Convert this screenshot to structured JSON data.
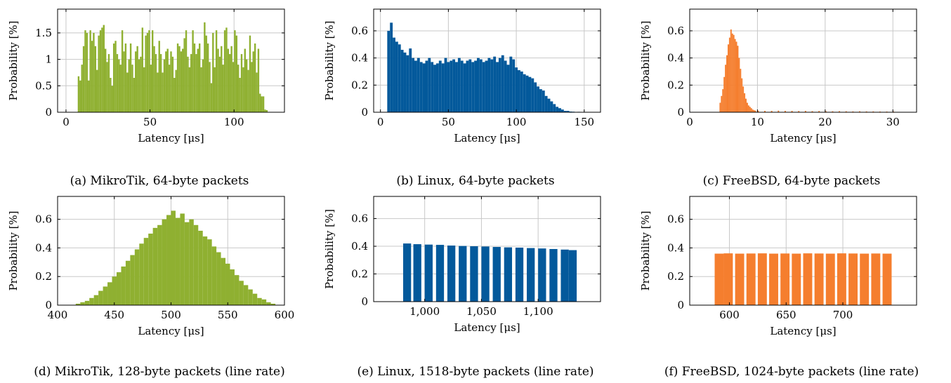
{
  "chart_data": [
    {
      "type": "bar",
      "caption": "(a) MikroTik, 64-byte packets",
      "xlabel": "Latency [μs]",
      "ylabel": "Probability [%]",
      "xlim": [
        -5,
        130
      ],
      "ylim": [
        0,
        1.95
      ],
      "xticks": [
        "0",
        "50",
        "100"
      ],
      "xtick_values": [
        0,
        50,
        100
      ],
      "yticks": [
        "0",
        "0.5",
        "1",
        "1.5"
      ],
      "ytick_values": [
        0,
        0.5,
        1,
        1.5
      ],
      "grid": true,
      "color": "#8fb031",
      "x": [
        7,
        8,
        9,
        10,
        11,
        12,
        13,
        14,
        15,
        16,
        17,
        18,
        19,
        20,
        21,
        22,
        23,
        24,
        25,
        26,
        27,
        28,
        29,
        30,
        31,
        32,
        33,
        34,
        35,
        36,
        37,
        38,
        39,
        40,
        41,
        42,
        43,
        44,
        45,
        46,
        47,
        48,
        49,
        50,
        51,
        52,
        53,
        54,
        55,
        56,
        57,
        58,
        59,
        60,
        61,
        62,
        63,
        64,
        65,
        66,
        67,
        68,
        69,
        70,
        71,
        72,
        73,
        74,
        75,
        76,
        77,
        78,
        79,
        80,
        81,
        82,
        83,
        84,
        85,
        86,
        87,
        88,
        89,
        90,
        91,
        92,
        93,
        94,
        95,
        96,
        97,
        98,
        99,
        100,
        101,
        102,
        103,
        104,
        105,
        106,
        107,
        108,
        109,
        110,
        111,
        112,
        113,
        114,
        115,
        116,
        117,
        118,
        119
      ],
      "values": [
        0.68,
        0.6,
        0.9,
        1.25,
        1.55,
        1.5,
        0.6,
        1.55,
        1.35,
        1.5,
        1.25,
        0.8,
        1.45,
        1.55,
        1.6,
        1.65,
        1.2,
        0.95,
        1.1,
        0.65,
        0.5,
        1.3,
        1.35,
        1.1,
        1.0,
        0.9,
        1.55,
        1.15,
        1.3,
        0.75,
        1.0,
        1.3,
        0.9,
        0.65,
        1.15,
        1.25,
        1.0,
        1.05,
        1.6,
        0.85,
        1.45,
        1.5,
        1.55,
        0.9,
        1.55,
        1.25,
        1.1,
        0.75,
        1.35,
        1.1,
        0.75,
        1.0,
        1.15,
        1.2,
        0.9,
        1.15,
        1.05,
        0.65,
        0.8,
        1.3,
        1.25,
        1.15,
        1.2,
        1.4,
        1.55,
        1.05,
        0.85,
        1.1,
        1.55,
        1.3,
        1.1,
        1.2,
        1.3,
        0.85,
        1.0,
        1.7,
        1.45,
        1.3,
        0.95,
        0.55,
        1.5,
        0.85,
        1.55,
        1.2,
        1.05,
        1.25,
        0.9,
        1.55,
        1.6,
        1.2,
        1.1,
        1.25,
        0.95,
        1.55,
        1.45,
        0.9,
        0.65,
        1.1,
        0.85,
        1.2,
        1.0,
        0.8,
        1.45,
        0.95,
        1.15,
        1.3,
        0.75,
        1.2,
        0.35,
        0.3,
        0.3,
        0.05,
        0.04
      ]
    },
    {
      "type": "bar",
      "caption": "(b) Linux, 64-byte packets",
      "xlabel": "Latency [μs]",
      "ylabel": "Probability [%]",
      "xlim": [
        -5,
        162
      ],
      "ylim": [
        0,
        0.76
      ],
      "xticks": [
        "0",
        "50",
        "100",
        "150"
      ],
      "xtick_values": [
        0,
        50,
        100,
        150
      ],
      "yticks": [
        "0",
        "0.2",
        "0.4",
        "0.6"
      ],
      "ytick_values": [
        0,
        0.2,
        0.4,
        0.6
      ],
      "grid": true,
      "color": "#03599b",
      "x": [
        5,
        7,
        9,
        11,
        13,
        15,
        17,
        19,
        21,
        23,
        25,
        27,
        29,
        31,
        33,
        35,
        37,
        39,
        41,
        43,
        45,
        47,
        49,
        51,
        53,
        55,
        57,
        59,
        61,
        63,
        65,
        67,
        69,
        71,
        73,
        75,
        77,
        79,
        81,
        83,
        85,
        87,
        89,
        91,
        93,
        95,
        97,
        99,
        101,
        103,
        105,
        107,
        109,
        111,
        113,
        115,
        117,
        119,
        121,
        123,
        125,
        127,
        129,
        131,
        133,
        135,
        137,
        139,
        141,
        145,
        150,
        155
      ],
      "values": [
        0.6,
        0.66,
        0.55,
        0.52,
        0.5,
        0.46,
        0.44,
        0.42,
        0.47,
        0.4,
        0.38,
        0.4,
        0.37,
        0.36,
        0.38,
        0.4,
        0.37,
        0.35,
        0.36,
        0.38,
        0.36,
        0.4,
        0.37,
        0.38,
        0.39,
        0.37,
        0.4,
        0.38,
        0.36,
        0.38,
        0.39,
        0.37,
        0.38,
        0.4,
        0.39,
        0.37,
        0.38,
        0.4,
        0.39,
        0.41,
        0.37,
        0.4,
        0.42,
        0.38,
        0.35,
        0.41,
        0.39,
        0.33,
        0.31,
        0.3,
        0.28,
        0.27,
        0.26,
        0.25,
        0.22,
        0.19,
        0.17,
        0.16,
        0.12,
        0.1,
        0.08,
        0.06,
        0.04,
        0.03,
        0.02,
        0.01,
        0.01,
        0.005,
        0.004,
        0.003,
        0.002,
        0.001
      ]
    },
    {
      "type": "bar",
      "caption": "(c) FreeBSD, 64-byte packets",
      "xlabel": "Latency [μs]",
      "ylabel": "Probability [%]",
      "xlim": [
        0,
        33.5
      ],
      "ylim": [
        0,
        0.76
      ],
      "xticks": [
        "0",
        "10",
        "20",
        "30"
      ],
      "xtick_values": [
        0,
        10,
        20,
        30
      ],
      "yticks": [
        "0",
        "0.2",
        "0.4",
        "0.6"
      ],
      "ytick_values": [
        0,
        0.2,
        0.4,
        0.6
      ],
      "grid": true,
      "color": "#f57e2e",
      "x": [
        4.4,
        4.6,
        4.8,
        5.0,
        5.2,
        5.4,
        5.6,
        5.8,
        6.0,
        6.2,
        6.4,
        6.6,
        6.8,
        7.0,
        7.2,
        7.4,
        7.6,
        7.8,
        8.0,
        8.2,
        8.4,
        8.6,
        8.8,
        9.0,
        9.2,
        9.4,
        9.6,
        10,
        11,
        12,
        13,
        14,
        15,
        16,
        17,
        18,
        19,
        20,
        21,
        22,
        23,
        24,
        25,
        26,
        27,
        28,
        29,
        30
      ],
      "values": [
        0.07,
        0.12,
        0.17,
        0.26,
        0.35,
        0.42,
        0.5,
        0.55,
        0.61,
        0.58,
        0.57,
        0.54,
        0.52,
        0.49,
        0.4,
        0.32,
        0.25,
        0.19,
        0.14,
        0.1,
        0.07,
        0.05,
        0.04,
        0.03,
        0.02,
        0.015,
        0.012,
        0.012,
        0.01,
        0.01,
        0.012,
        0.01,
        0.01,
        0.009,
        0.01,
        0.008,
        0.009,
        0.008,
        0.007,
        0.008,
        0.007,
        0.006,
        0.007,
        0.006,
        0.006,
        0.005,
        0.005,
        0.005
      ]
    },
    {
      "type": "bar",
      "caption": "(d) MikroTik, 128-byte packets (line rate)",
      "xlabel": "Latency [μs]",
      "ylabel": "Probability [%]",
      "xlim": [
        400,
        600
      ],
      "ylim": [
        0,
        0.76
      ],
      "xticks": [
        "400",
        "450",
        "500",
        "550",
        "600"
      ],
      "xtick_values": [
        400,
        450,
        500,
        550,
        600
      ],
      "yticks": [
        "0",
        "0.2",
        "0.4",
        "0.6"
      ],
      "ytick_values": [
        0,
        0.2,
        0.4,
        0.6
      ],
      "grid": true,
      "color": "#8fb031",
      "x": [
        416,
        420,
        424,
        428,
        432,
        436,
        440,
        444,
        448,
        452,
        456,
        460,
        464,
        468,
        472,
        476,
        480,
        484,
        488,
        492,
        496,
        500,
        504,
        508,
        512,
        516,
        520,
        524,
        528,
        532,
        536,
        540,
        544,
        548,
        552,
        556,
        560,
        564,
        568,
        572,
        576,
        580,
        584,
        588
      ],
      "values": [
        0.01,
        0.02,
        0.03,
        0.05,
        0.07,
        0.1,
        0.13,
        0.16,
        0.2,
        0.23,
        0.27,
        0.31,
        0.35,
        0.39,
        0.43,
        0.47,
        0.5,
        0.54,
        0.56,
        0.6,
        0.63,
        0.66,
        0.61,
        0.64,
        0.58,
        0.6,
        0.56,
        0.52,
        0.48,
        0.46,
        0.41,
        0.37,
        0.33,
        0.29,
        0.25,
        0.21,
        0.17,
        0.14,
        0.11,
        0.08,
        0.05,
        0.04,
        0.02,
        0.01
      ]
    },
    {
      "type": "bar",
      "caption": "(e) Linux, 1518-byte packets (line rate)",
      "xlabel": "Latency [μs]",
      "ylabel": "Probability [%]",
      "xlim": [
        955,
        1155
      ],
      "ylim": [
        0,
        0.76
      ],
      "xticks": [
        "1,000",
        "1,050",
        "1,100"
      ],
      "xtick_values": [
        1000,
        1050,
        1100
      ],
      "yticks": [
        "0",
        "0.2",
        "0.4",
        "0.6"
      ],
      "ytick_values": [
        0,
        0.2,
        0.4,
        0.6
      ],
      "grid": true,
      "color": "#03599b",
      "x": [
        981,
        990,
        1000,
        1010,
        1020,
        1030,
        1040,
        1050,
        1060,
        1070,
        1080,
        1090,
        1100,
        1110,
        1120,
        1127
      ],
      "values": [
        0.42,
        0.415,
        0.412,
        0.41,
        0.405,
        0.402,
        0.4,
        0.398,
        0.395,
        0.392,
        0.39,
        0.387,
        0.384,
        0.38,
        0.376,
        0.372
      ]
    },
    {
      "type": "bar",
      "caption": "(f) FreeBSD, 1024-byte packets (line rate)",
      "xlabel": "Latency [μs]",
      "ylabel": "Probability [%]",
      "xlim": [
        565,
        765
      ],
      "ylim": [
        0,
        0.76
      ],
      "xticks": [
        "600",
        "650",
        "700"
      ],
      "xtick_values": [
        600,
        650,
        700
      ],
      "yticks": [
        "0",
        "0.2",
        "0.4",
        "0.6"
      ],
      "ytick_values": [
        0,
        0.2,
        0.4,
        0.6
      ],
      "grid": true,
      "color": "#f57e2e",
      "x": [
        587,
        595,
        605,
        615,
        625,
        635,
        645,
        655,
        665,
        675,
        685,
        695,
        705,
        715,
        725,
        735
      ],
      "values": [
        0.36,
        0.362,
        0.36,
        0.361,
        0.362,
        0.36,
        0.361,
        0.36,
        0.362,
        0.361,
        0.36,
        0.362,
        0.361,
        0.36,
        0.361,
        0.36
      ]
    }
  ]
}
